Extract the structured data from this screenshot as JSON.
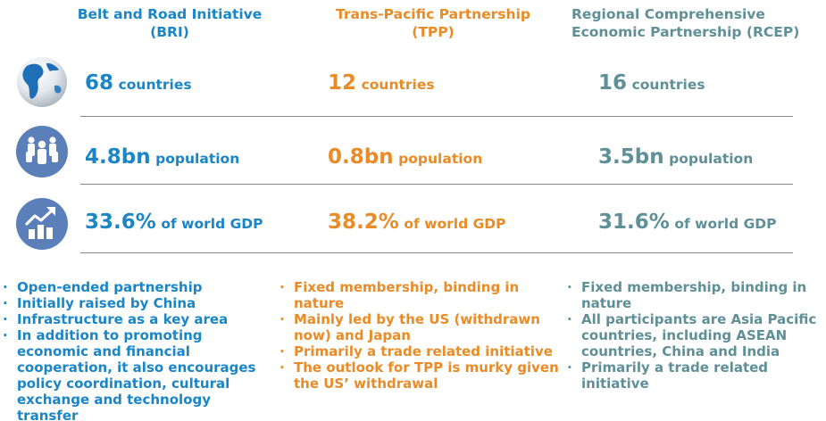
{
  "columns": {
    "bri": {
      "title_line1": "Belt and Road Initiative",
      "title_line2": "(BRI)",
      "color": "#1a85c7"
    },
    "tpp": {
      "title_line1": "Trans-Pacific Partnership",
      "title_line2": "(TPP)",
      "color": "#e98b27"
    },
    "rcep": {
      "title_line1": "Regional Comprehensive",
      "title_line2": "Economic Partnership (RCEP)",
      "color": "#5f8f97"
    }
  },
  "rows": {
    "countries": {
      "icon": "globe-icon",
      "unit": "countries",
      "bri": "68",
      "tpp": "12",
      "rcep": "16"
    },
    "population": {
      "icon": "people-icon",
      "unit": "population",
      "bri": "4.8bn",
      "tpp": "0.8bn",
      "rcep": "3.5bn"
    },
    "gdp": {
      "icon": "chart-growth-icon",
      "unit": "of world GDP",
      "bri": "33.6%",
      "tpp": "38.2%",
      "rcep": "31.6%"
    }
  },
  "bullets": {
    "bri": [
      "Open-ended partnership",
      "Initially raised by China",
      "Infrastructure as a key area",
      "In addition to promoting economic and financial cooperation, it also encourages policy coordination, cultural exchange and technology transfer"
    ],
    "tpp": [
      "Fixed membership, binding in nature",
      "Mainly led by the US (withdrawn now) and Japan",
      "Primarily a trade related initiative",
      "The outlook for TPP is murky given the US’ withdrawal"
    ],
    "rcep": [
      "Fixed membership, binding in nature",
      "All participants are Asia Pacific countries, including ASEAN countries, China and India",
      "Primarily a trade related initiative"
    ]
  },
  "colors": {
    "icon_bg": "#5b7fb8",
    "divider": "#8a8a8a"
  }
}
